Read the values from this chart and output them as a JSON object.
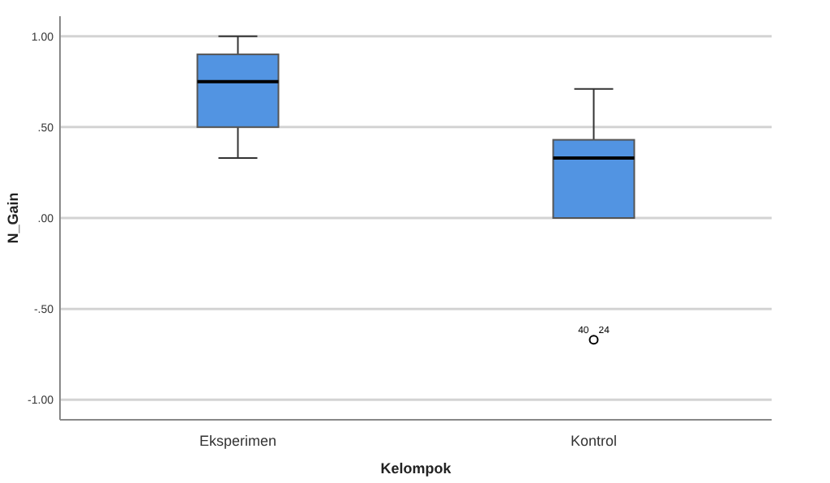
{
  "chart_data": {
    "type": "box",
    "xlabel": "Kelompok",
    "ylabel": "N_Gain",
    "categories": [
      "Eksperimen",
      "Kontrol"
    ],
    "boxes": [
      {
        "low": 0.33,
        "q1": 0.5,
        "median": 0.75,
        "q3": 0.9,
        "high": 1.0
      },
      {
        "low": 0.0,
        "q1": 0.0,
        "median": 0.33,
        "q3": 0.43,
        "high": 0.71,
        "outliers": [
          -0.67
        ]
      }
    ],
    "color": "#5294e2",
    "ylim": [
      -1.11,
      1.11
    ],
    "yticks": [
      {
        "value": -1,
        "label": "-1.00"
      },
      {
        "value": -0.5,
        "label": "-.50"
      },
      {
        "value": 0,
        "label": ".00"
      },
      {
        "value": 0.5,
        "label": ".50"
      },
      {
        "value": 1,
        "label": "1.00"
      }
    ],
    "grid": "y",
    "annotations": [
      "40",
      "24"
    ]
  }
}
